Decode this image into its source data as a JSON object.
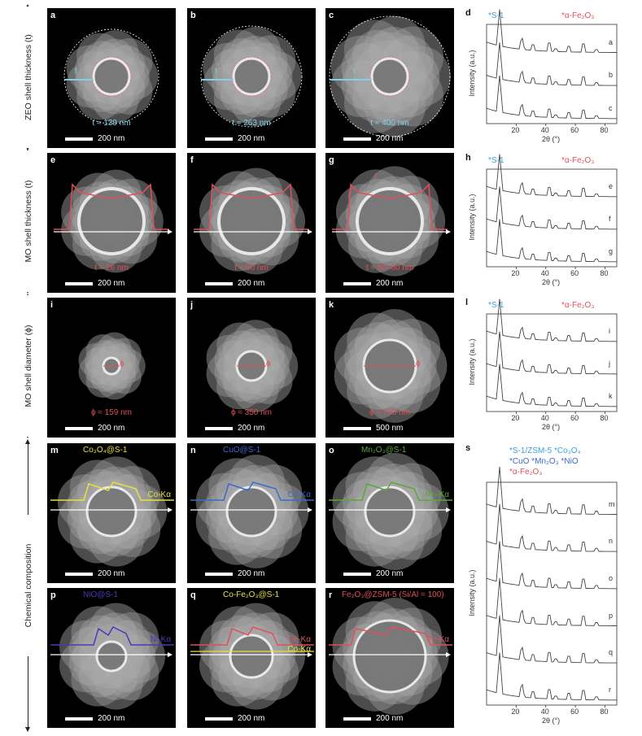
{
  "row_labels": [
    {
      "text": "ZEO shell thickness (t)"
    },
    {
      "text": "MO shell thickness (t)"
    },
    {
      "text": "MO shell diameter (ϕ)"
    },
    {
      "text": "Chemical composition"
    }
  ],
  "panels": [
    {
      "letter": "a",
      "title": "",
      "annotation": "t ≈ 139 nm",
      "scale": "200 nm",
      "marker": "t"
    },
    {
      "letter": "b",
      "title": "",
      "annotation": "t ≈ 263 nm",
      "scale": "200 nm",
      "marker": "t"
    },
    {
      "letter": "c",
      "title": "",
      "annotation": "t ≈ 400 nm",
      "scale": "200 nm",
      "marker": "t"
    },
    {
      "letter": "e",
      "title": "",
      "annotation": "t ≈ 26 nm",
      "scale": "200 nm",
      "marker": ""
    },
    {
      "letter": "f",
      "title": "",
      "annotation": "t ≈ 60 nm",
      "scale": "200 nm",
      "marker": ""
    },
    {
      "letter": "g",
      "title": "",
      "annotation": "t ≈ 50–60 nm",
      "scale": "200 nm",
      "marker": "t"
    },
    {
      "letter": "i",
      "title": "",
      "annotation": "ϕ ≈ 159 nm",
      "scale": "200 nm",
      "marker": "ϕ"
    },
    {
      "letter": "j",
      "title": "",
      "annotation": "ϕ ≈ 350 nm",
      "scale": "200 nm",
      "marker": "ϕ"
    },
    {
      "letter": "k",
      "title": "",
      "annotation": "ϕ ≈ 736 nm",
      "scale": "500 nm",
      "marker": "ϕ"
    },
    {
      "letter": "m",
      "title": "Co₃O₄@S-1",
      "annotation": "Co-Kα",
      "scale": "200 nm",
      "marker": ""
    },
    {
      "letter": "n",
      "title": "CuO@S-1",
      "annotation": "Cu-Kα",
      "scale": "200 nm",
      "marker": ""
    },
    {
      "letter": "o",
      "title": "Mn₂O₃@S-1",
      "annotation": "Mn-Kα",
      "scale": "200 nm",
      "marker": ""
    },
    {
      "letter": "p",
      "title": "NiO@S-1",
      "annotation": "Ni-Kα",
      "scale": "200 nm",
      "marker": ""
    },
    {
      "letter": "q",
      "title": "Co-Fe₂O₃@S-1",
      "annotation": "Fe-Kα",
      "annotation2": "Co-Kα",
      "scale": "200 nm",
      "marker": ""
    },
    {
      "letter": "r",
      "title": "Fe₂O₃@ZSM-5 (Si/Al = 100)",
      "annotation": "Fe-Kα",
      "scale": "200 nm",
      "marker": ""
    }
  ],
  "xrd_panels": [
    {
      "letter": "d",
      "legend_left": "*S-1",
      "legend_right": "*α-Fe₂O₃",
      "traces": [
        "a",
        "b",
        "c"
      ],
      "ylabel": "Intensity (a.u.)",
      "xlabel": "2θ (°)",
      "ticks": [
        "20",
        "40",
        "60",
        "80"
      ]
    },
    {
      "letter": "h",
      "legend_left": "*S-1",
      "legend_right": "*α-Fe₂O₃",
      "traces": [
        "e",
        "f",
        "g"
      ],
      "ylabel": "Intensity (a.u.)",
      "xlabel": "2θ (°)",
      "ticks": [
        "20",
        "40",
        "60",
        "80"
      ]
    },
    {
      "letter": "l",
      "legend_left": "*S-1",
      "legend_right": "*α-Fe₂O₃",
      "traces": [
        "i",
        "j",
        "k"
      ],
      "ylabel": "Intensity (a.u.)",
      "xlabel": "2θ (°)",
      "ticks": [
        "20",
        "40",
        "60",
        "80"
      ]
    },
    {
      "letter": "s",
      "legend_lines": [
        "*S-1/ZSM-5  *Co₃O₄",
        "*CuO  *Mn₂O₃  *NiO",
        "*α-Fe₂O₃"
      ],
      "traces": [
        "m",
        "n",
        "o",
        "p",
        "q",
        "r"
      ],
      "ylabel": "Intensity (a.u.)",
      "xlabel": "2θ (°)",
      "ticks": [
        "20",
        "40",
        "60",
        "80"
      ]
    }
  ],
  "colors": {
    "zeolite_legend": "#3aa0d8",
    "fe2o3": "#e0505a",
    "co": "#e6e040",
    "cu": "#3a6ad0",
    "mn": "#5aa83a",
    "ni": "#4a3ab8",
    "shell_ring": "#e8707a",
    "thickness_marker": "#7fd0e8"
  }
}
